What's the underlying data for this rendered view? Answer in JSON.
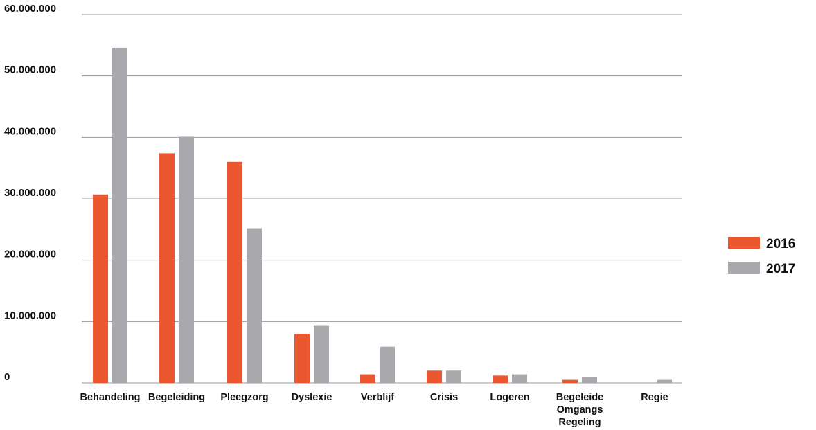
{
  "chart_data": {
    "type": "bar",
    "title": "",
    "xlabel": "",
    "ylabel": "",
    "ylim": [
      0,
      60000000
    ],
    "grid": true,
    "legend_position": "right",
    "y_ticks": [
      "0",
      "10.000.000",
      "20.000.000",
      "30.000.000",
      "40.000.000",
      "50.000.000",
      "60.000.000"
    ],
    "categories": [
      [
        "Behandeling"
      ],
      [
        "Begeleiding"
      ],
      [
        "Pleegzorg"
      ],
      [
        "Dyslexie"
      ],
      [
        "Verblijf"
      ],
      [
        "Crisis"
      ],
      [
        "Logeren"
      ],
      [
        "Begeleide",
        "Omgangs",
        "Regeling"
      ],
      [
        "Regie"
      ]
    ],
    "series": [
      {
        "name": "2016",
        "color": "#ea5731",
        "values": [
          30700000,
          37400000,
          36000000,
          8000000,
          1400000,
          2000000,
          1200000,
          500000,
          0
        ]
      },
      {
        "name": "2017",
        "color": "#a9a9ad",
        "values": [
          54600000,
          40100000,
          25200000,
          9300000,
          5900000,
          2000000,
          1400000,
          1000000,
          500000
        ]
      }
    ]
  }
}
